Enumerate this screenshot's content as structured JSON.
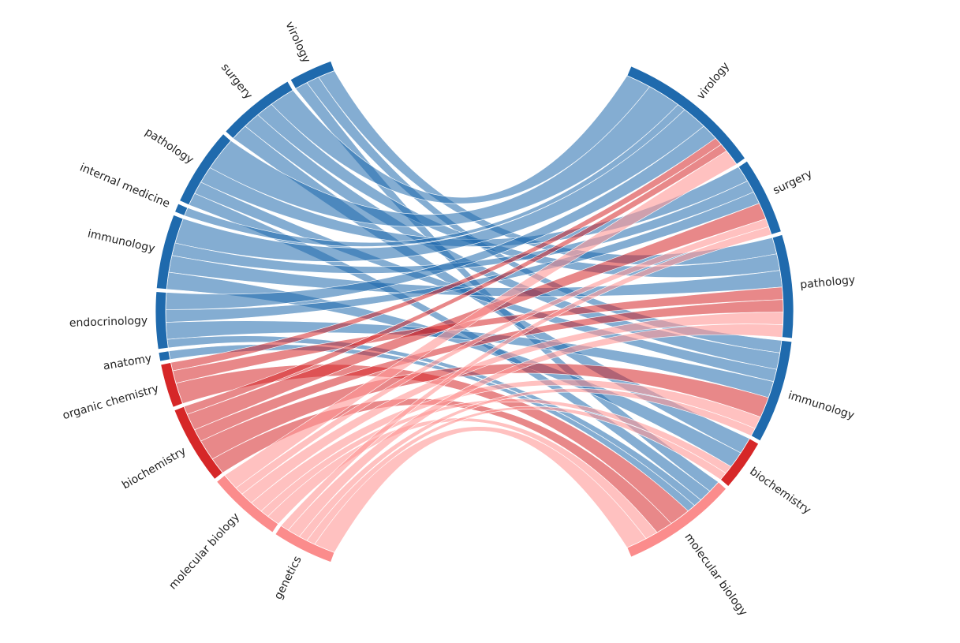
{
  "chart_data": {
    "type": "chord",
    "left": {
      "labels": [
        "virology",
        "surgery",
        "pathology",
        "internal medicine",
        "immunology",
        "endocrinology",
        "anatomy",
        "organic chemistry",
        "biochemistry",
        "molecular biology",
        "genetics"
      ],
      "colors": [
        "#1f6aad",
        "#1f6aad",
        "#1f6aad",
        "#1f6aad",
        "#1f6aad",
        "#1f6aad",
        "#1f6aad",
        "#d62728",
        "#d62728",
        "#fb8c8c",
        "#fb8c8c"
      ]
    },
    "right": {
      "labels": [
        "virology",
        "surgery",
        "pathology",
        "immunology",
        "biochemistry",
        "molecular biology"
      ],
      "colors": [
        "#1f6aad",
        "#1f6aad",
        "#1f6aad",
        "#1f6aad",
        "#d62728",
        "#fb8c8c"
      ]
    },
    "ribbon_colors": {
      "#1f6aad": "#1f6aad",
      "#d62728": "#d62728",
      "#fb8c8c": "#ff9896"
    },
    "links": [
      {
        "source": 0,
        "target": 2,
        "value": 4
      },
      {
        "source": 0,
        "target": 3,
        "value": 3
      },
      {
        "source": 0,
        "target": 5,
        "value": 3
      },
      {
        "source": 1,
        "target": 0,
        "value": 6
      },
      {
        "source": 1,
        "target": 2,
        "value": 4
      },
      {
        "source": 1,
        "target": 3,
        "value": 4
      },
      {
        "source": 1,
        "target": 4,
        "value": 4
      },
      {
        "source": 2,
        "target": 0,
        "value": 8
      },
      {
        "source": 2,
        "target": 1,
        "value": 4
      },
      {
        "source": 2,
        "target": 3,
        "value": 3
      },
      {
        "source": 2,
        "target": 5,
        "value": 3
      },
      {
        "source": 3,
        "target": 0,
        "value": 2
      },
      {
        "source": 4,
        "target": 0,
        "value": 6
      },
      {
        "source": 4,
        "target": 1,
        "value": 3
      },
      {
        "source": 4,
        "target": 2,
        "value": 4
      },
      {
        "source": 4,
        "target": 4,
        "value": 4
      },
      {
        "source": 5,
        "target": 0,
        "value": 4
      },
      {
        "source": 5,
        "target": 1,
        "value": 3
      },
      {
        "source": 5,
        "target": 3,
        "value": 4
      },
      {
        "source": 5,
        "target": 5,
        "value": 2
      },
      {
        "source": 6,
        "target": 5,
        "value": 2
      },
      {
        "source": 7,
        "target": 0,
        "value": 2
      },
      {
        "source": 7,
        "target": 2,
        "value": 3
      },
      {
        "source": 7,
        "target": 5,
        "value": 5
      },
      {
        "source": 8,
        "target": 0,
        "value": 2
      },
      {
        "source": 8,
        "target": 1,
        "value": 4
      },
      {
        "source": 8,
        "target": 2,
        "value": 3
      },
      {
        "source": 8,
        "target": 3,
        "value": 5
      },
      {
        "source": 8,
        "target": 5,
        "value": 4
      },
      {
        "source": 9,
        "target": 0,
        "value": 4
      },
      {
        "source": 9,
        "target": 1,
        "value": 2
      },
      {
        "source": 9,
        "target": 2,
        "value": 3
      },
      {
        "source": 9,
        "target": 3,
        "value": 3
      },
      {
        "source": 9,
        "target": 4,
        "value": 2
      },
      {
        "source": 9,
        "target": 5,
        "value": 3
      },
      {
        "source": 10,
        "target": 1,
        "value": 2
      },
      {
        "source": 10,
        "target": 2,
        "value": 3
      },
      {
        "source": 10,
        "target": 3,
        "value": 2
      },
      {
        "source": 10,
        "target": 4,
        "value": 2
      },
      {
        "source": 10,
        "target": 5,
        "value": 5
      }
    ]
  }
}
